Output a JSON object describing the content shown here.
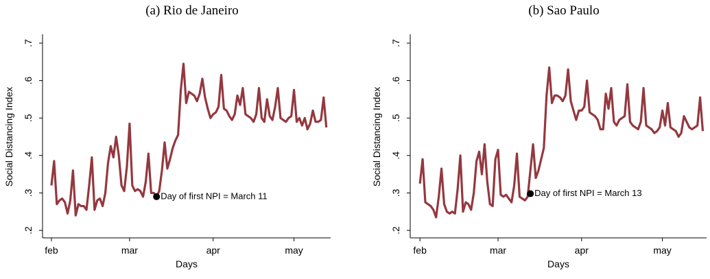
{
  "chart_data": [
    {
      "type": "line",
      "title": "(a) Rio de Janeiro",
      "xlabel": "Days",
      "ylabel": "Social Distancing Index",
      "color": "#94383f",
      "x": [
        0,
        1,
        2,
        3,
        4,
        5,
        6,
        7,
        8,
        9,
        10,
        11,
        12,
        13,
        14,
        15,
        16,
        17,
        18,
        19,
        20,
        21,
        22,
        23,
        24,
        25,
        26,
        27,
        28,
        29,
        30,
        31,
        32,
        33,
        34,
        35,
        36,
        37,
        38,
        39,
        40,
        41,
        42,
        43,
        44,
        45,
        46,
        47,
        48,
        49,
        50,
        51,
        52,
        53,
        54,
        55,
        56,
        57,
        58,
        59,
        60,
        61,
        62,
        63,
        64,
        65,
        66,
        67,
        68,
        69,
        70,
        71,
        72,
        73,
        74,
        75,
        76,
        77,
        78,
        79,
        80,
        81,
        82,
        83,
        84,
        85,
        86,
        87,
        88,
        89,
        90,
        91,
        92,
        93,
        94,
        95,
        96,
        97,
        98,
        99,
        100,
        101,
        102
      ],
      "values": [
        0.32,
        0.385,
        0.27,
        0.28,
        0.285,
        0.275,
        0.245,
        0.28,
        0.36,
        0.24,
        0.27,
        0.265,
        0.265,
        0.255,
        0.32,
        0.395,
        0.255,
        0.28,
        0.285,
        0.265,
        0.3,
        0.38,
        0.425,
        0.395,
        0.45,
        0.4,
        0.32,
        0.305,
        0.37,
        0.485,
        0.32,
        0.305,
        0.31,
        0.305,
        0.29,
        0.33,
        0.405,
        0.3,
        0.3,
        0.29,
        0.305,
        0.36,
        0.435,
        0.365,
        0.39,
        0.42,
        0.44,
        0.455,
        0.575,
        0.645,
        0.54,
        0.57,
        0.565,
        0.56,
        0.545,
        0.565,
        0.605,
        0.555,
        0.525,
        0.5,
        0.51,
        0.515,
        0.53,
        0.615,
        0.525,
        0.52,
        0.505,
        0.495,
        0.51,
        0.56,
        0.535,
        0.58,
        0.51,
        0.505,
        0.5,
        0.49,
        0.51,
        0.58,
        0.5,
        0.49,
        0.55,
        0.505,
        0.495,
        0.53,
        0.58,
        0.5,
        0.495,
        0.49,
        0.5,
        0.505,
        0.575,
        0.49,
        0.5,
        0.48,
        0.5,
        0.47,
        0.485,
        0.52,
        0.49,
        0.49,
        0.495,
        0.555,
        0.475
      ],
      "xlim": [
        -3.3,
        103.6
      ],
      "ylim": [
        0.18,
        0.72
      ],
      "xticks": [
        {
          "value": 0,
          "label": "feb"
        },
        {
          "value": 29,
          "label": "mar"
        },
        {
          "value": 60,
          "label": "apr"
        },
        {
          "value": 90,
          "label": "may"
        }
      ],
      "yticks": [
        {
          "value": 0.2,
          "label": ".2"
        },
        {
          "value": 0.3,
          "label": ".3"
        },
        {
          "value": 0.4,
          "label": ".4"
        },
        {
          "value": 0.5,
          "label": ".5"
        },
        {
          "value": 0.6,
          "label": ".6"
        },
        {
          "value": 0.7,
          "label": ".7"
        }
      ],
      "annotation": {
        "text": "Day of first NPI = March 11",
        "x": 39,
        "y": 0.29
      }
    },
    {
      "type": "line",
      "title": "(b) Sao Paulo",
      "xlabel": "Days",
      "ylabel": "Social Distancing Index",
      "color": "#94383f",
      "x": [
        0,
        1,
        2,
        3,
        4,
        5,
        6,
        7,
        8,
        9,
        10,
        11,
        12,
        13,
        14,
        15,
        16,
        17,
        18,
        19,
        20,
        21,
        22,
        23,
        24,
        25,
        26,
        27,
        28,
        29,
        30,
        31,
        32,
        33,
        34,
        35,
        36,
        37,
        38,
        39,
        40,
        41,
        42,
        43,
        44,
        45,
        46,
        47,
        48,
        49,
        50,
        51,
        52,
        53,
        54,
        55,
        56,
        57,
        58,
        59,
        60,
        61,
        62,
        63,
        64,
        65,
        66,
        67,
        68,
        69,
        70,
        71,
        72,
        73,
        74,
        75,
        76,
        77,
        78,
        79,
        80,
        81,
        82,
        83,
        84,
        85,
        86,
        87,
        88,
        89,
        90,
        91,
        92,
        93,
        94,
        95,
        96,
        97,
        98,
        99,
        100,
        101,
        102,
        103,
        104,
        105
      ],
      "values": [
        0.325,
        0.39,
        0.275,
        0.27,
        0.265,
        0.255,
        0.235,
        0.29,
        0.365,
        0.27,
        0.25,
        0.245,
        0.25,
        0.245,
        0.31,
        0.4,
        0.25,
        0.275,
        0.27,
        0.255,
        0.3,
        0.385,
        0.41,
        0.35,
        0.43,
        0.33,
        0.27,
        0.265,
        0.39,
        0.415,
        0.295,
        0.29,
        0.295,
        0.285,
        0.275,
        0.32,
        0.405,
        0.29,
        0.285,
        0.28,
        0.29,
        0.36,
        0.43,
        0.34,
        0.36,
        0.39,
        0.42,
        0.56,
        0.635,
        0.54,
        0.56,
        0.56,
        0.555,
        0.545,
        0.56,
        0.63,
        0.545,
        0.52,
        0.495,
        0.52,
        0.52,
        0.53,
        0.6,
        0.515,
        0.51,
        0.505,
        0.495,
        0.47,
        0.47,
        0.565,
        0.525,
        0.58,
        0.49,
        0.48,
        0.495,
        0.5,
        0.505,
        0.59,
        0.49,
        0.48,
        0.475,
        0.47,
        0.49,
        0.58,
        0.48,
        0.475,
        0.47,
        0.46,
        0.465,
        0.475,
        0.52,
        0.48,
        0.54,
        0.475,
        0.47,
        0.465,
        0.45,
        0.46,
        0.505,
        0.49,
        0.475,
        0.47,
        0.475,
        0.48,
        0.555,
        0.465
      ],
      "xlim": [
        -3.6,
        106.4
      ],
      "ylim": [
        0.18,
        0.72
      ],
      "xticks": [
        {
          "value": 0,
          "label": "feb"
        },
        {
          "value": 29,
          "label": "mar"
        },
        {
          "value": 60,
          "label": "apr"
        },
        {
          "value": 90,
          "label": "may"
        }
      ],
      "yticks": [
        {
          "value": 0.2,
          "label": ".2"
        },
        {
          "value": 0.3,
          "label": ".3"
        },
        {
          "value": 0.4,
          "label": ".4"
        },
        {
          "value": 0.5,
          "label": ".5"
        },
        {
          "value": 0.6,
          "label": ".6"
        },
        {
          "value": 0.7,
          "label": ".7"
        }
      ],
      "annotation": {
        "text": "Day of first NPI = March 13",
        "x": 41,
        "y": 0.298
      }
    }
  ]
}
